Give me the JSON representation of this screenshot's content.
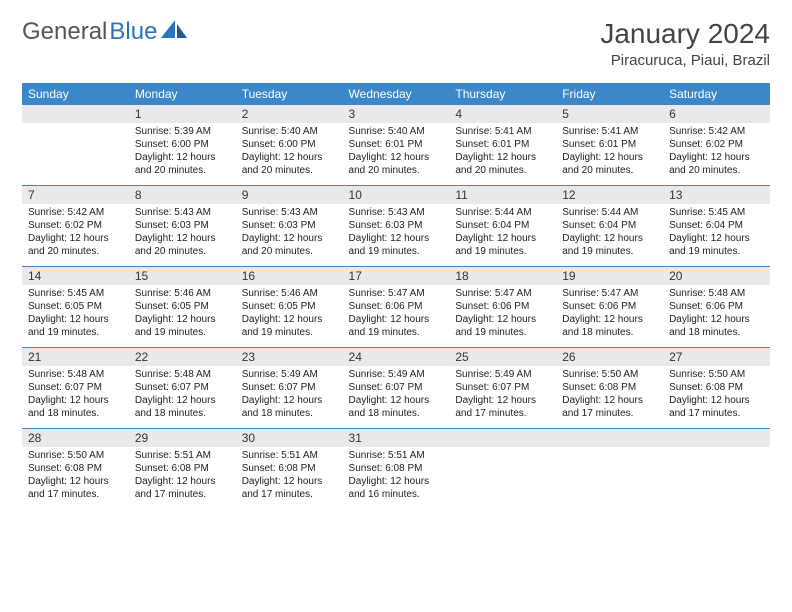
{
  "logo": {
    "text1": "General",
    "text2": "Blue"
  },
  "title": "January 2024",
  "location": "Piracuruca, Piaui, Brazil",
  "colors": {
    "header_bg": "#3b87c8",
    "header_text": "#ffffff",
    "daynum_bg": "#e9e9e9",
    "border": "#3b87c8",
    "text": "#333333",
    "logo_gray": "#555555",
    "logo_blue": "#2a74b8"
  },
  "weekdays": [
    "Sunday",
    "Monday",
    "Tuesday",
    "Wednesday",
    "Thursday",
    "Friday",
    "Saturday"
  ],
  "weeks": [
    {
      "days": [
        {
          "empty": true
        },
        {
          "num": "1",
          "sunrise": "Sunrise: 5:39 AM",
          "sunset": "Sunset: 6:00 PM",
          "daylight1": "Daylight: 12 hours",
          "daylight2": "and 20 minutes."
        },
        {
          "num": "2",
          "sunrise": "Sunrise: 5:40 AM",
          "sunset": "Sunset: 6:00 PM",
          "daylight1": "Daylight: 12 hours",
          "daylight2": "and 20 minutes."
        },
        {
          "num": "3",
          "sunrise": "Sunrise: 5:40 AM",
          "sunset": "Sunset: 6:01 PM",
          "daylight1": "Daylight: 12 hours",
          "daylight2": "and 20 minutes."
        },
        {
          "num": "4",
          "sunrise": "Sunrise: 5:41 AM",
          "sunset": "Sunset: 6:01 PM",
          "daylight1": "Daylight: 12 hours",
          "daylight2": "and 20 minutes."
        },
        {
          "num": "5",
          "sunrise": "Sunrise: 5:41 AM",
          "sunset": "Sunset: 6:01 PM",
          "daylight1": "Daylight: 12 hours",
          "daylight2": "and 20 minutes."
        },
        {
          "num": "6",
          "sunrise": "Sunrise: 5:42 AM",
          "sunset": "Sunset: 6:02 PM",
          "daylight1": "Daylight: 12 hours",
          "daylight2": "and 20 minutes."
        }
      ]
    },
    {
      "days": [
        {
          "num": "7",
          "sunrise": "Sunrise: 5:42 AM",
          "sunset": "Sunset: 6:02 PM",
          "daylight1": "Daylight: 12 hours",
          "daylight2": "and 20 minutes."
        },
        {
          "num": "8",
          "sunrise": "Sunrise: 5:43 AM",
          "sunset": "Sunset: 6:03 PM",
          "daylight1": "Daylight: 12 hours",
          "daylight2": "and 20 minutes."
        },
        {
          "num": "9",
          "sunrise": "Sunrise: 5:43 AM",
          "sunset": "Sunset: 6:03 PM",
          "daylight1": "Daylight: 12 hours",
          "daylight2": "and 20 minutes."
        },
        {
          "num": "10",
          "sunrise": "Sunrise: 5:43 AM",
          "sunset": "Sunset: 6:03 PM",
          "daylight1": "Daylight: 12 hours",
          "daylight2": "and 19 minutes."
        },
        {
          "num": "11",
          "sunrise": "Sunrise: 5:44 AM",
          "sunset": "Sunset: 6:04 PM",
          "daylight1": "Daylight: 12 hours",
          "daylight2": "and 19 minutes."
        },
        {
          "num": "12",
          "sunrise": "Sunrise: 5:44 AM",
          "sunset": "Sunset: 6:04 PM",
          "daylight1": "Daylight: 12 hours",
          "daylight2": "and 19 minutes."
        },
        {
          "num": "13",
          "sunrise": "Sunrise: 5:45 AM",
          "sunset": "Sunset: 6:04 PM",
          "daylight1": "Daylight: 12 hours",
          "daylight2": "and 19 minutes."
        }
      ]
    },
    {
      "days": [
        {
          "num": "14",
          "sunrise": "Sunrise: 5:45 AM",
          "sunset": "Sunset: 6:05 PM",
          "daylight1": "Daylight: 12 hours",
          "daylight2": "and 19 minutes."
        },
        {
          "num": "15",
          "sunrise": "Sunrise: 5:46 AM",
          "sunset": "Sunset: 6:05 PM",
          "daylight1": "Daylight: 12 hours",
          "daylight2": "and 19 minutes."
        },
        {
          "num": "16",
          "sunrise": "Sunrise: 5:46 AM",
          "sunset": "Sunset: 6:05 PM",
          "daylight1": "Daylight: 12 hours",
          "daylight2": "and 19 minutes."
        },
        {
          "num": "17",
          "sunrise": "Sunrise: 5:47 AM",
          "sunset": "Sunset: 6:06 PM",
          "daylight1": "Daylight: 12 hours",
          "daylight2": "and 19 minutes."
        },
        {
          "num": "18",
          "sunrise": "Sunrise: 5:47 AM",
          "sunset": "Sunset: 6:06 PM",
          "daylight1": "Daylight: 12 hours",
          "daylight2": "and 19 minutes."
        },
        {
          "num": "19",
          "sunrise": "Sunrise: 5:47 AM",
          "sunset": "Sunset: 6:06 PM",
          "daylight1": "Daylight: 12 hours",
          "daylight2": "and 18 minutes."
        },
        {
          "num": "20",
          "sunrise": "Sunrise: 5:48 AM",
          "sunset": "Sunset: 6:06 PM",
          "daylight1": "Daylight: 12 hours",
          "daylight2": "and 18 minutes."
        }
      ]
    },
    {
      "days": [
        {
          "num": "21",
          "sunrise": "Sunrise: 5:48 AM",
          "sunset": "Sunset: 6:07 PM",
          "daylight1": "Daylight: 12 hours",
          "daylight2": "and 18 minutes."
        },
        {
          "num": "22",
          "sunrise": "Sunrise: 5:48 AM",
          "sunset": "Sunset: 6:07 PM",
          "daylight1": "Daylight: 12 hours",
          "daylight2": "and 18 minutes."
        },
        {
          "num": "23",
          "sunrise": "Sunrise: 5:49 AM",
          "sunset": "Sunset: 6:07 PM",
          "daylight1": "Daylight: 12 hours",
          "daylight2": "and 18 minutes."
        },
        {
          "num": "24",
          "sunrise": "Sunrise: 5:49 AM",
          "sunset": "Sunset: 6:07 PM",
          "daylight1": "Daylight: 12 hours",
          "daylight2": "and 18 minutes."
        },
        {
          "num": "25",
          "sunrise": "Sunrise: 5:49 AM",
          "sunset": "Sunset: 6:07 PM",
          "daylight1": "Daylight: 12 hours",
          "daylight2": "and 17 minutes."
        },
        {
          "num": "26",
          "sunrise": "Sunrise: 5:50 AM",
          "sunset": "Sunset: 6:08 PM",
          "daylight1": "Daylight: 12 hours",
          "daylight2": "and 17 minutes."
        },
        {
          "num": "27",
          "sunrise": "Sunrise: 5:50 AM",
          "sunset": "Sunset: 6:08 PM",
          "daylight1": "Daylight: 12 hours",
          "daylight2": "and 17 minutes."
        }
      ]
    },
    {
      "days": [
        {
          "num": "28",
          "sunrise": "Sunrise: 5:50 AM",
          "sunset": "Sunset: 6:08 PM",
          "daylight1": "Daylight: 12 hours",
          "daylight2": "and 17 minutes."
        },
        {
          "num": "29",
          "sunrise": "Sunrise: 5:51 AM",
          "sunset": "Sunset: 6:08 PM",
          "daylight1": "Daylight: 12 hours",
          "daylight2": "and 17 minutes."
        },
        {
          "num": "30",
          "sunrise": "Sunrise: 5:51 AM",
          "sunset": "Sunset: 6:08 PM",
          "daylight1": "Daylight: 12 hours",
          "daylight2": "and 17 minutes."
        },
        {
          "num": "31",
          "sunrise": "Sunrise: 5:51 AM",
          "sunset": "Sunset: 6:08 PM",
          "daylight1": "Daylight: 12 hours",
          "daylight2": "and 16 minutes."
        },
        {
          "empty": true
        },
        {
          "empty": true
        },
        {
          "empty": true
        }
      ]
    }
  ]
}
